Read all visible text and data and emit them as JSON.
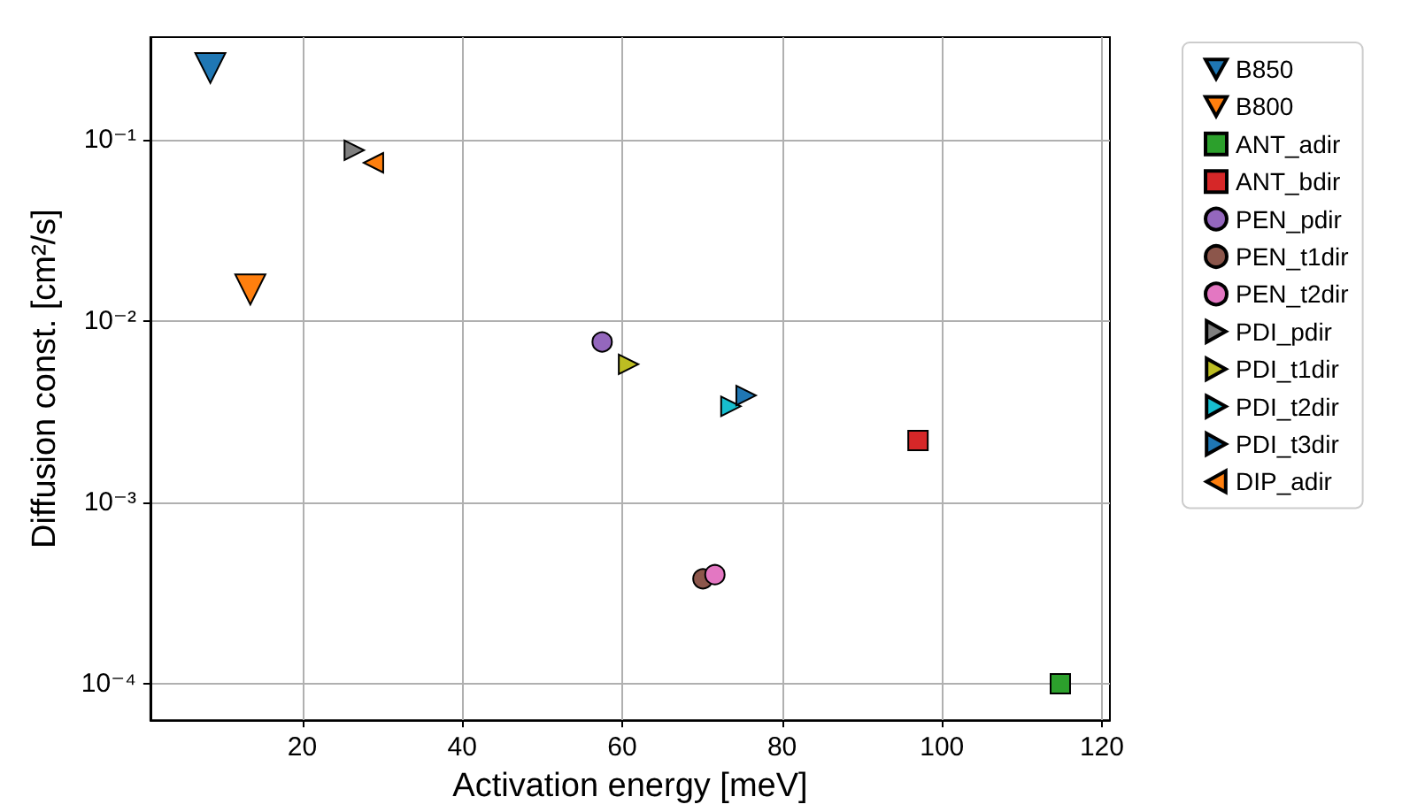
{
  "chart_data": {
    "type": "scatter",
    "xlabel": "Activation energy [meV]",
    "ylabel": "Diffusion const. [cm²/s]",
    "log": "y",
    "grid": true,
    "legend": "right",
    "xlim": [
      1,
      121
    ],
    "xticks": [
      20,
      40,
      60,
      80,
      100,
      120
    ],
    "ylim": [
      6.3e-05,
      0.37
    ],
    "yticks": [
      {
        "value": 0.0001,
        "label": "10⁻⁴"
      },
      {
        "value": 0.001,
        "label": "10⁻³"
      },
      {
        "value": 0.01,
        "label": "10⁻²"
      },
      {
        "value": 0.1,
        "label": "10⁻¹"
      }
    ],
    "series": [
      {
        "name": "B850",
        "color": "#1f77b4",
        "marker": "triangle_down",
        "x": [
          8.5
        ],
        "values": [
          0.25
        ]
      },
      {
        "name": "B800",
        "color": "#ff7f0e",
        "marker": "triangle_down",
        "x": [
          13.5
        ],
        "values": [
          0.015
        ]
      },
      {
        "name": "ANT_adir",
        "color": "#2ca02c",
        "marker": "square",
        "x": [
          114.8
        ],
        "values": [
          0.0001
        ]
      },
      {
        "name": "ANT_bdir",
        "color": "#d62728",
        "marker": "square",
        "x": [
          97
        ],
        "values": [
          0.0022
        ]
      },
      {
        "name": "PEN_pdir",
        "color": "#9467bd",
        "marker": "circle",
        "x": [
          57.5
        ],
        "values": [
          0.0077
        ]
      },
      {
        "name": "PEN_t1dir",
        "color": "#8c564b",
        "marker": "circle",
        "x": [
          70.1
        ],
        "values": [
          0.00038
        ]
      },
      {
        "name": "PEN_t2dir",
        "color": "#e377c2",
        "marker": "circle",
        "x": [
          71.6
        ],
        "values": [
          0.0004
        ]
      },
      {
        "name": "PDI_pdir",
        "color": "#7f7f7f",
        "marker": "triangle_right",
        "x": [
          26.5
        ],
        "values": [
          0.088
        ]
      },
      {
        "name": "PDI_t1dir",
        "color": "#bcbd22",
        "marker": "triangle_right",
        "x": [
          60.8
        ],
        "values": [
          0.0058
        ]
      },
      {
        "name": "PDI_t2dir",
        "color": "#17becf",
        "marker": "triangle_right",
        "x": [
          73.6
        ],
        "values": [
          0.0034
        ]
      },
      {
        "name": "PDI_t3dir",
        "color": "#1f77b4",
        "marker": "triangle_right",
        "x": [
          75.5
        ],
        "values": [
          0.0039
        ]
      },
      {
        "name": "DIP_adir",
        "color": "#ff7f0e",
        "marker": "triangle_left",
        "x": [
          28.9
        ],
        "values": [
          0.075
        ]
      }
    ]
  }
}
